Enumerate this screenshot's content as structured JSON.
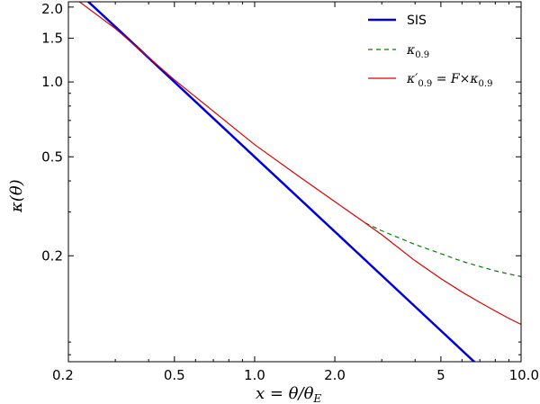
{
  "chart_data": {
    "type": "line",
    "xlabel": "x = θ/θE",
    "ylabel": "κ(θ)",
    "xscale": "log",
    "yscale": "log",
    "xlim": [
      0.2,
      10.0
    ],
    "ylim": [
      0.075,
      2.1
    ],
    "grid": false,
    "legend_position": "top-right",
    "xticks": [
      {
        "value": 0.2,
        "label": "0.2"
      },
      {
        "value": 0.5,
        "label": "0.5"
      },
      {
        "value": 1.0,
        "label": "1.0"
      },
      {
        "value": 2.0,
        "label": "2.0"
      },
      {
        "value": 5,
        "label": "5"
      },
      {
        "value": 10.0,
        "label": "10.0"
      }
    ],
    "yticks": [
      {
        "value": 0.2,
        "label": "0.2"
      },
      {
        "value": 0.5,
        "label": "0.5"
      },
      {
        "value": 1.0,
        "label": "1.0"
      },
      {
        "value": 1.5,
        "label": "1.5"
      },
      {
        "value": 2.0,
        "label": "2.0"
      }
    ],
    "series": [
      {
        "name": "SIS",
        "color": "#0000dd",
        "style": "solid-thick",
        "x": [
          0.23,
          0.3,
          0.5,
          1.0,
          2.0,
          5.0,
          10.0
        ],
        "y": [
          2.17,
          1.667,
          1.0,
          0.5,
          0.25,
          0.1,
          0.05
        ]
      },
      {
        "name": "κ0.9",
        "color": "#008000",
        "style": "dashed",
        "x": [
          2.6,
          3.0,
          4.0,
          5.0,
          6.0,
          7.0,
          8.0,
          9.0,
          10.0
        ],
        "y": [
          0.271,
          0.252,
          0.222,
          0.204,
          0.19,
          0.181,
          0.174,
          0.169,
          0.165
        ]
      },
      {
        "name": "κ′0.9=F×κ0.9",
        "color": "#dd0000",
        "style": "solid",
        "x": [
          0.22,
          0.3,
          0.5,
          1.0,
          1.5,
          2.0,
          2.6,
          3.0,
          4.0,
          5.0,
          6.0,
          7.0,
          8.0,
          9.0,
          10.0
        ],
        "y": [
          2.1,
          1.64,
          1.02,
          0.56,
          0.41,
          0.33,
          0.271,
          0.243,
          0.191,
          0.162,
          0.143,
          0.13,
          0.12,
          0.112,
          0.106
        ]
      }
    ]
  },
  "legend": {
    "sis_label": "SIS",
    "green_symbol": "κ",
    "green_sub": "0.9",
    "red_symbol": "κ′",
    "red_sub": "0.9",
    "red_rest": " = F×κ",
    "red_rest_sub": "0.9"
  },
  "axes": {
    "x_main": "x = θ/θ",
    "x_sub": "E",
    "y_label": "κ(θ)"
  }
}
